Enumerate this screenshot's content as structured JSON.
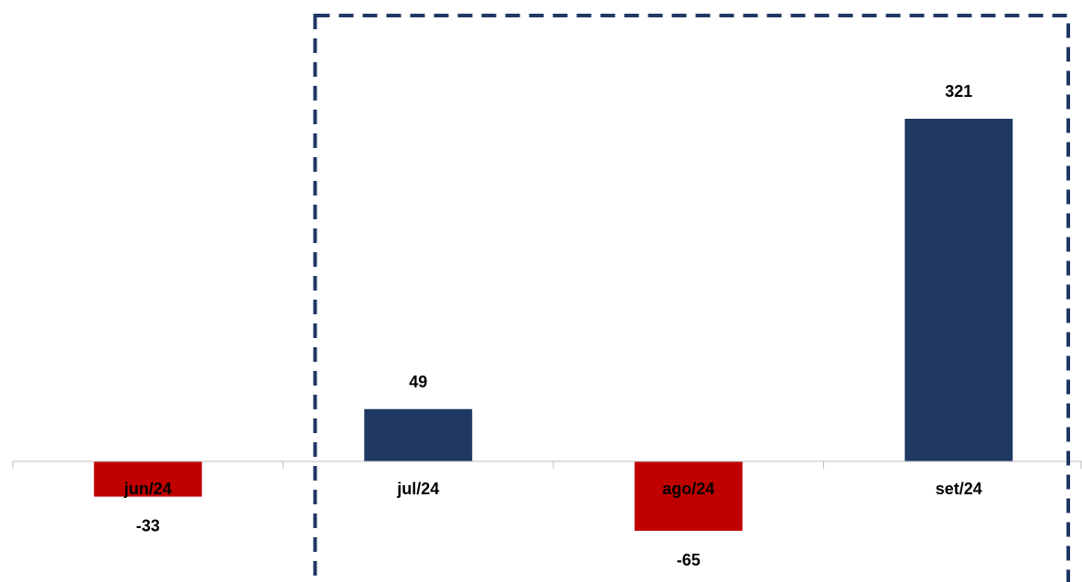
{
  "chart_data": {
    "type": "bar",
    "categories": [
      "jun/24",
      "jul/24",
      "ago/24",
      "set/24"
    ],
    "values": [
      -33,
      49,
      -65,
      321
    ],
    "data_labels": [
      "-33",
      "49",
      "-65",
      "321"
    ],
    "title": "",
    "xlabel": "",
    "ylabel": "",
    "grid": false,
    "legend": "none",
    "highlight_box": {
      "style": "dashed",
      "from_category": "jul/24",
      "to_category": "set/24"
    }
  },
  "colors": {
    "positive": "#1f3864",
    "negative": "#c00000",
    "axis": "#bfbfbf",
    "highlight_border": "#1f3864",
    "text": "#000000"
  }
}
